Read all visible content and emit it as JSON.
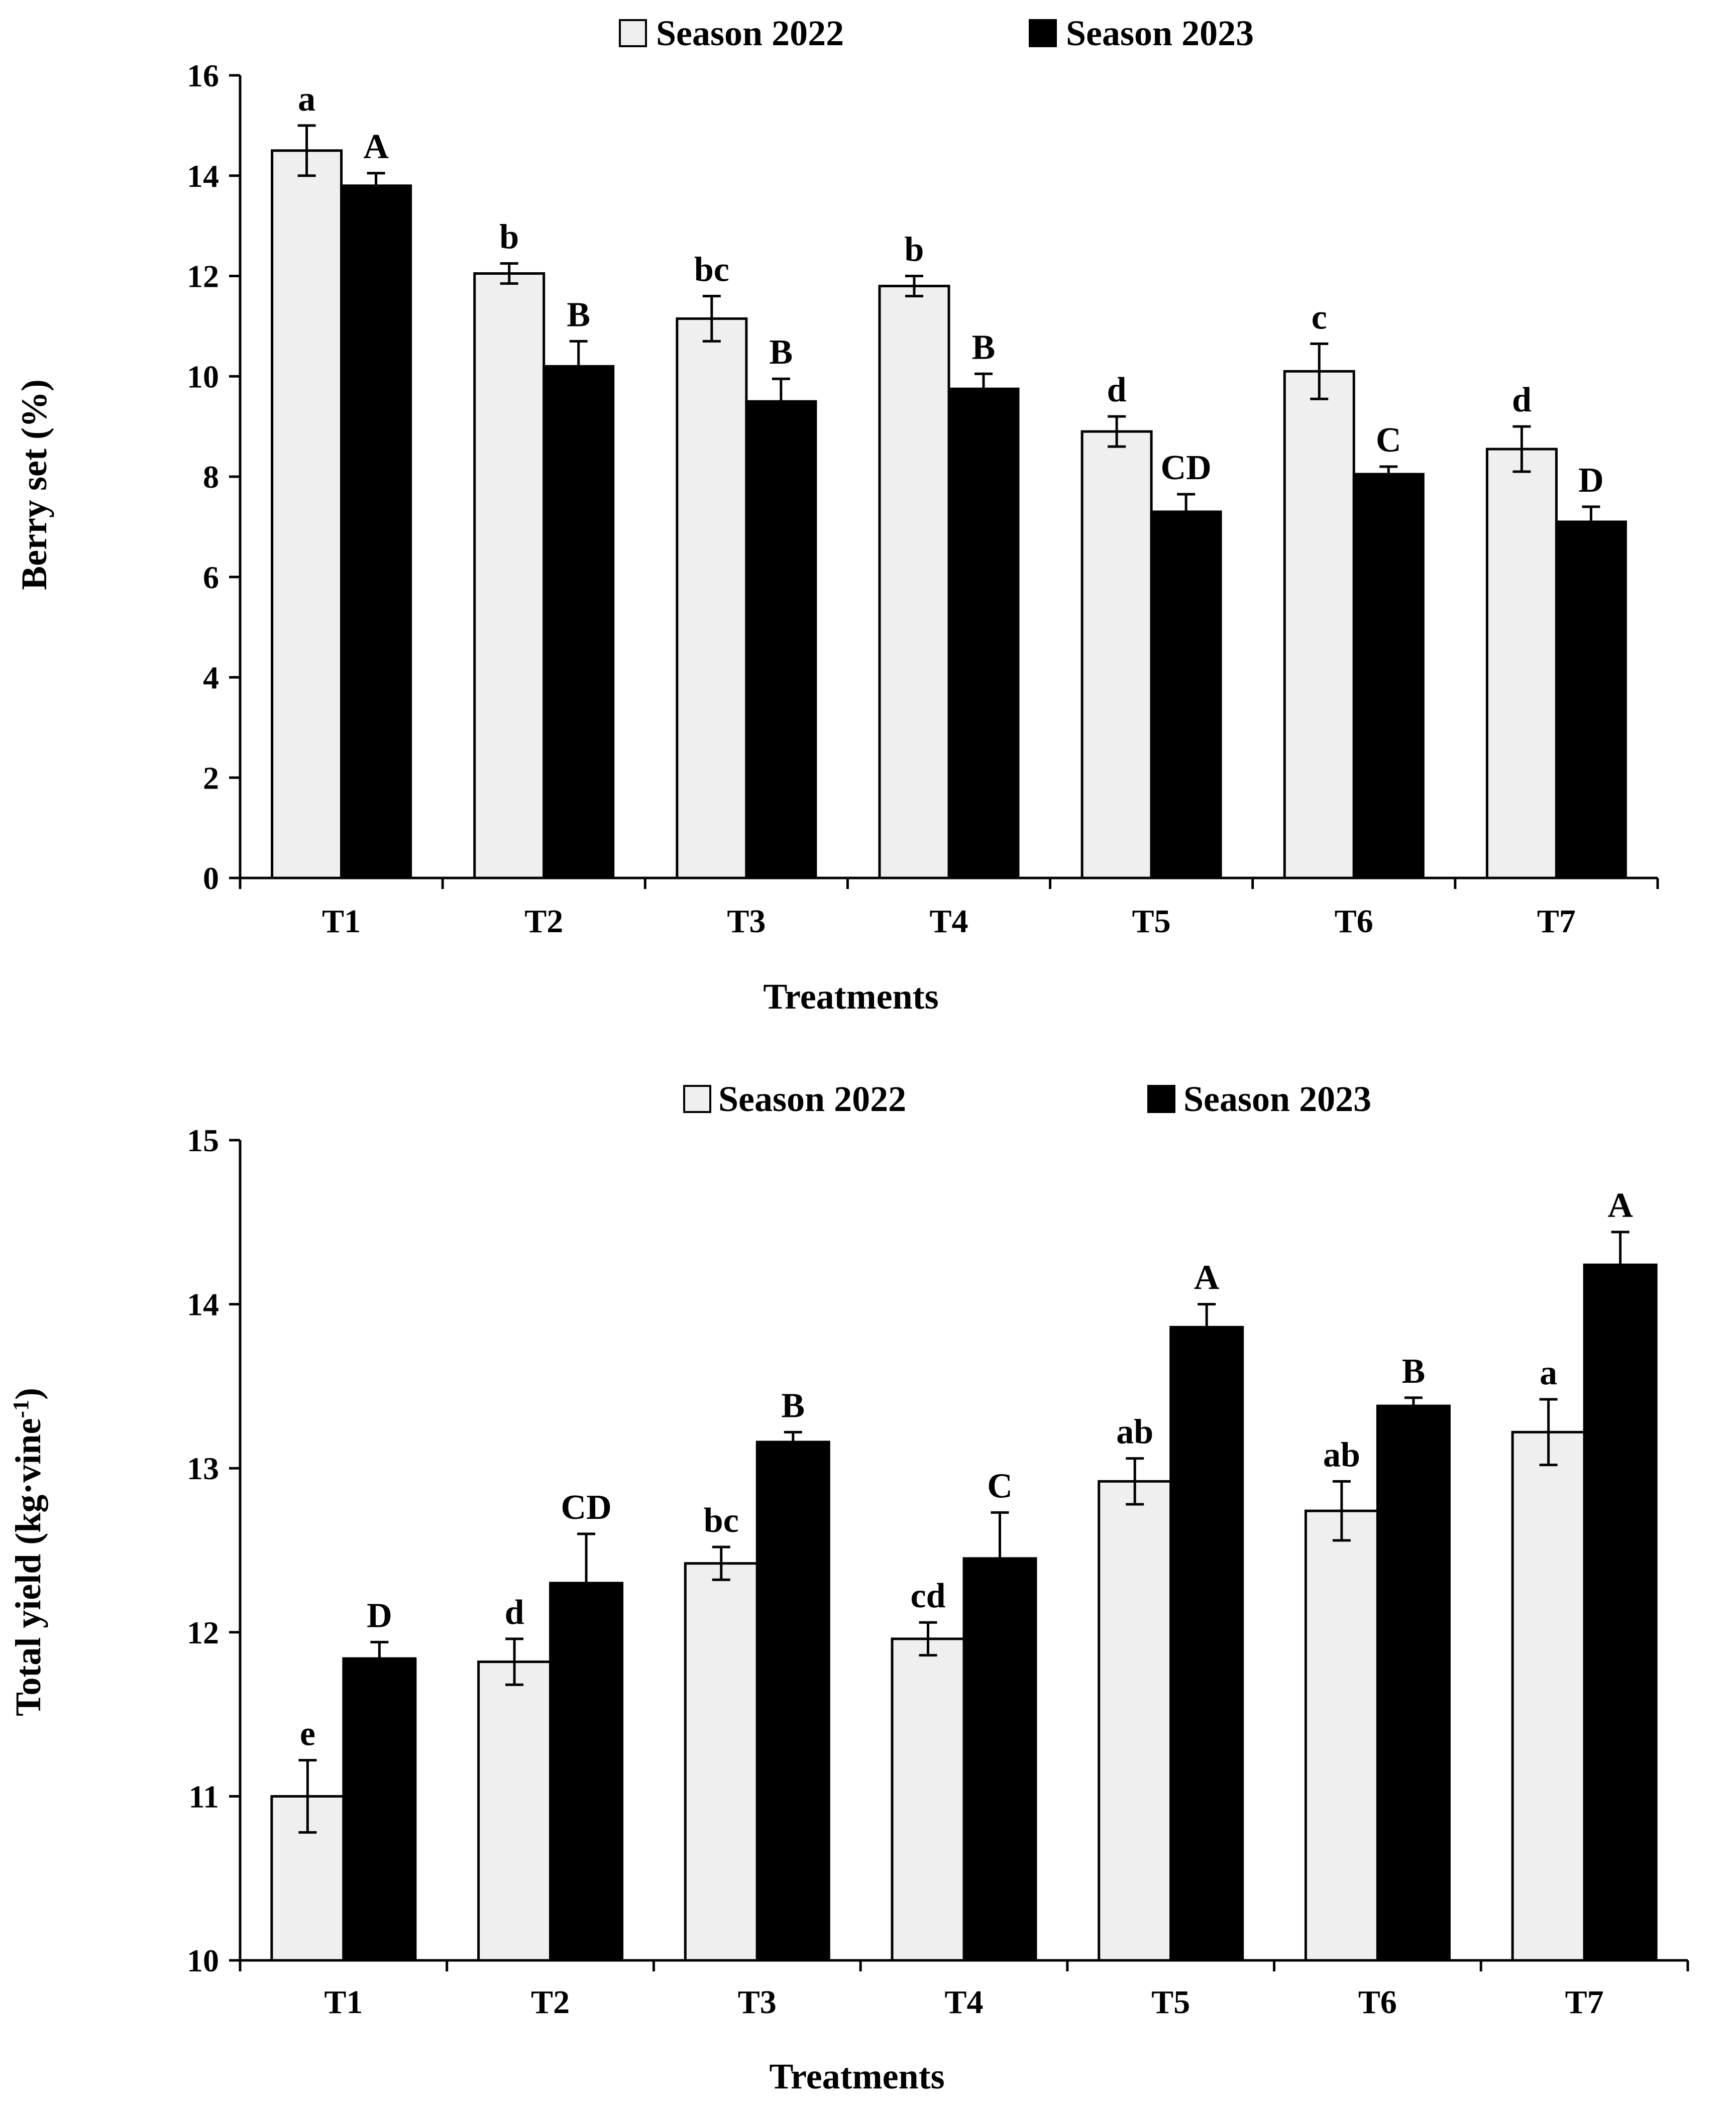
{
  "chart_data": [
    {
      "type": "bar",
      "title": "",
      "xlabel": "Treatments",
      "ylabel": "Berry set (%)",
      "ylim": [
        0,
        16
      ],
      "yticks": [
        0,
        2,
        4,
        6,
        8,
        10,
        12,
        14,
        16
      ],
      "grid": false,
      "legend_position": "top-center",
      "categories": [
        "T1",
        "T2",
        "T3",
        "T4",
        "T5",
        "T6",
        "T7"
      ],
      "series": [
        {
          "name": "Season 2022",
          "color": "#efefef",
          "values": [
            14.5,
            12.05,
            11.15,
            11.8,
            8.9,
            10.1,
            8.55
          ],
          "errors": [
            0.5,
            0.2,
            0.45,
            0.2,
            0.3,
            0.55,
            0.45
          ],
          "labels": [
            "a",
            "b",
            "bc",
            "b",
            "d",
            "c",
            "d"
          ]
        },
        {
          "name": "Season 2023",
          "color": "#000000",
          "values": [
            13.8,
            10.2,
            9.5,
            9.75,
            7.3,
            8.05,
            7.1
          ],
          "errors": [
            0.25,
            0.5,
            0.45,
            0.3,
            0.35,
            0.15,
            0.3
          ],
          "labels": [
            "A",
            "B",
            "B",
            "B",
            "CD",
            "C",
            "D"
          ]
        }
      ]
    },
    {
      "type": "bar",
      "title": "",
      "xlabel": "Treatments",
      "ylabel": "Total yield (kg·vine-1)",
      "ylim": [
        10,
        15
      ],
      "yticks": [
        10,
        11,
        12,
        13,
        14,
        15
      ],
      "grid": false,
      "legend_position": "top-center",
      "categories": [
        "T1",
        "T2",
        "T3",
        "T4",
        "T5",
        "T6",
        "T7"
      ],
      "series": [
        {
          "name": "Season 2022",
          "color": "#efefef",
          "values": [
            11.0,
            11.82,
            12.42,
            11.96,
            12.92,
            12.74,
            13.22
          ],
          "errors": [
            0.22,
            0.14,
            0.1,
            0.1,
            0.14,
            0.18,
            0.2
          ],
          "labels": [
            "e",
            "d",
            "bc",
            "cd",
            "ab",
            "ab",
            "a"
          ]
        },
        {
          "name": "Season 2023",
          "color": "#000000",
          "values": [
            11.84,
            12.3,
            13.16,
            12.45,
            13.86,
            13.38,
            14.24
          ],
          "errors": [
            0.1,
            0.3,
            0.06,
            0.28,
            0.14,
            0.05,
            0.2
          ],
          "labels": [
            "D",
            "CD",
            "B",
            "C",
            "A",
            "B",
            "A"
          ]
        }
      ]
    }
  ]
}
